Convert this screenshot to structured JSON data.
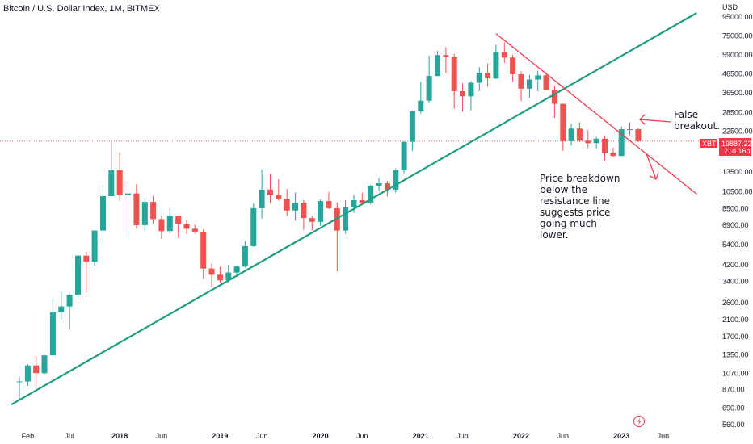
{
  "chart_title": "Bitcoin / U.S. Dollar Index, 1M, BITMEX",
  "currency_label": "USD",
  "colors": {
    "up": "#26a69a",
    "down": "#ef5350",
    "support": "#1f9d7e",
    "resistance": "#ef3950",
    "price_line": "#ef5350",
    "badge": "#f23645",
    "badge_dark": "#e0404f",
    "text": "#131722"
  },
  "price_badge": {
    "symbol": "XBT",
    "price": "19887.22",
    "countdown": "21d 16h"
  },
  "lightning_icon": "lightning-icon",
  "annotations": {
    "false_breakout": [
      "False",
      "breakout."
    ],
    "breakdown_note": [
      "Price breakdown",
      "below the",
      "resistance line",
      "suggests price",
      "going much",
      "lower."
    ]
  },
  "chart_data": {
    "type": "candlestick",
    "title": "Bitcoin / U.S. Dollar Index, 1M, BITMEX",
    "y_scale": "log",
    "ylim": [
      540,
      110000
    ],
    "y_ticks": [
      95000,
      75000,
      59000,
      46500,
      36500,
      28500,
      22500,
      13500,
      10500,
      8500,
      6900,
      5400,
      4200,
      3400,
      2600,
      2100,
      1700,
      1350,
      1070,
      870,
      690,
      560
    ],
    "y_tick_labels": [
      "95000.00",
      "75000.00",
      "59000.00",
      "46500.00",
      "36500.00",
      "28500.00",
      "22500.00",
      "13500.00",
      "10500.00",
      "8500.00",
      "6900.00",
      "5400.00",
      "4200.00",
      "3400.00",
      "2600.00",
      "2100.00",
      "1700.00",
      "1350.00",
      "1070.00",
      "870.00",
      "690.00",
      "560.00"
    ],
    "x_ticks": [
      {
        "label": "Feb",
        "date": "2017-02",
        "year": false
      },
      {
        "label": "Jul",
        "date": "2017-07",
        "year": false
      },
      {
        "label": "2018",
        "date": "2018-01",
        "year": true
      },
      {
        "label": "Jun",
        "date": "2018-06",
        "year": false
      },
      {
        "label": "2019",
        "date": "2019-01",
        "year": true
      },
      {
        "label": "Jun",
        "date": "2019-06",
        "year": false
      },
      {
        "label": "2020",
        "date": "2020-01",
        "year": true
      },
      {
        "label": "Jun",
        "date": "2020-06",
        "year": false
      },
      {
        "label": "2021",
        "date": "2021-01",
        "year": true
      },
      {
        "label": "Jun",
        "date": "2021-06",
        "year": false
      },
      {
        "label": "2022",
        "date": "2022-01",
        "year": true
      },
      {
        "label": "Jun",
        "date": "2022-06",
        "year": false
      },
      {
        "label": "2023",
        "date": "2023-01",
        "year": true
      },
      {
        "label": "Jun",
        "date": "2023-06",
        "year": false
      }
    ],
    "candles": [
      {
        "date": "2017-01",
        "o": 960,
        "h": 1020,
        "l": 760,
        "c": 965
      },
      {
        "date": "2017-02",
        "o": 965,
        "h": 1200,
        "l": 910,
        "c": 1180
      },
      {
        "date": "2017-03",
        "o": 1180,
        "h": 1330,
        "l": 890,
        "c": 1070
      },
      {
        "date": "2017-04",
        "o": 1070,
        "h": 1350,
        "l": 1060,
        "c": 1340
      },
      {
        "date": "2017-05",
        "o": 1340,
        "h": 2700,
        "l": 1320,
        "c": 2300
      },
      {
        "date": "2017-06",
        "o": 2300,
        "h": 3000,
        "l": 2100,
        "c": 2480
      },
      {
        "date": "2017-07",
        "o": 2480,
        "h": 2900,
        "l": 1850,
        "c": 2870
      },
      {
        "date": "2017-08",
        "o": 2870,
        "h": 4700,
        "l": 2700,
        "c": 4700
      },
      {
        "date": "2017-09",
        "o": 4700,
        "h": 4950,
        "l": 2950,
        "c": 4350
      },
      {
        "date": "2017-10",
        "o": 4350,
        "h": 6450,
        "l": 4150,
        "c": 6450
      },
      {
        "date": "2017-11",
        "o": 6450,
        "h": 11300,
        "l": 5500,
        "c": 9950
      },
      {
        "date": "2017-12",
        "o": 9950,
        "h": 19700,
        "l": 9900,
        "c": 13800
      },
      {
        "date": "2018-01",
        "o": 13800,
        "h": 17200,
        "l": 9400,
        "c": 10100
      },
      {
        "date": "2018-02",
        "o": 10100,
        "h": 11800,
        "l": 6000,
        "c": 10300
      },
      {
        "date": "2018-03",
        "o": 10300,
        "h": 11600,
        "l": 6600,
        "c": 6900
      },
      {
        "date": "2018-04",
        "o": 6900,
        "h": 9750,
        "l": 6450,
        "c": 9250
      },
      {
        "date": "2018-05",
        "o": 9250,
        "h": 10000,
        "l": 7000,
        "c": 7450
      },
      {
        "date": "2018-06",
        "o": 7450,
        "h": 7750,
        "l": 5800,
        "c": 6400
      },
      {
        "date": "2018-07",
        "o": 6400,
        "h": 8500,
        "l": 6250,
        "c": 7750
      },
      {
        "date": "2018-08",
        "o": 7750,
        "h": 7800,
        "l": 5900,
        "c": 7000
      },
      {
        "date": "2018-09",
        "o": 7000,
        "h": 7400,
        "l": 6150,
        "c": 6600
      },
      {
        "date": "2018-10",
        "o": 6600,
        "h": 6950,
        "l": 6200,
        "c": 6300
      },
      {
        "date": "2018-11",
        "o": 6300,
        "h": 6550,
        "l": 3500,
        "c": 4000
      },
      {
        "date": "2018-12",
        "o": 4000,
        "h": 4250,
        "l": 3150,
        "c": 3700
      },
      {
        "date": "2019-01",
        "o": 3700,
        "h": 4100,
        "l": 3350,
        "c": 3450
      },
      {
        "date": "2019-02",
        "o": 3450,
        "h": 4200,
        "l": 3350,
        "c": 3800
      },
      {
        "date": "2019-03",
        "o": 3800,
        "h": 4150,
        "l": 3700,
        "c": 4100
      },
      {
        "date": "2019-04",
        "o": 4100,
        "h": 5650,
        "l": 4050,
        "c": 5300
      },
      {
        "date": "2019-05",
        "o": 5300,
        "h": 9100,
        "l": 5250,
        "c": 8550
      },
      {
        "date": "2019-06",
        "o": 8550,
        "h": 13900,
        "l": 7500,
        "c": 10800
      },
      {
        "date": "2019-07",
        "o": 10800,
        "h": 13200,
        "l": 9150,
        "c": 10100
      },
      {
        "date": "2019-08",
        "o": 10100,
        "h": 12300,
        "l": 9400,
        "c": 9600
      },
      {
        "date": "2019-09",
        "o": 9600,
        "h": 10900,
        "l": 7750,
        "c": 8300
      },
      {
        "date": "2019-10",
        "o": 8300,
        "h": 10400,
        "l": 7300,
        "c": 9150
      },
      {
        "date": "2019-11",
        "o": 9150,
        "h": 9500,
        "l": 6500,
        "c": 7550
      },
      {
        "date": "2019-12",
        "o": 7550,
        "h": 7750,
        "l": 6450,
        "c": 7200
      },
      {
        "date": "2020-01",
        "o": 7200,
        "h": 9550,
        "l": 6850,
        "c": 9350
      },
      {
        "date": "2020-02",
        "o": 9350,
        "h": 10500,
        "l": 8450,
        "c": 8550
      },
      {
        "date": "2020-03",
        "o": 8550,
        "h": 9200,
        "l": 3850,
        "c": 6450
      },
      {
        "date": "2020-04",
        "o": 6450,
        "h": 9450,
        "l": 6200,
        "c": 8650
      },
      {
        "date": "2020-05",
        "o": 8650,
        "h": 10100,
        "l": 8050,
        "c": 9450
      },
      {
        "date": "2020-06",
        "o": 9450,
        "h": 10400,
        "l": 8950,
        "c": 9150
      },
      {
        "date": "2020-07",
        "o": 9150,
        "h": 11450,
        "l": 8950,
        "c": 11350
      },
      {
        "date": "2020-08",
        "o": 11350,
        "h": 12500,
        "l": 10550,
        "c": 11700
      },
      {
        "date": "2020-09",
        "o": 11700,
        "h": 12100,
        "l": 9900,
        "c": 10800
      },
      {
        "date": "2020-10",
        "o": 10800,
        "h": 14100,
        "l": 10400,
        "c": 13800
      },
      {
        "date": "2020-11",
        "o": 13800,
        "h": 19900,
        "l": 13250,
        "c": 19700
      },
      {
        "date": "2020-12",
        "o": 19700,
        "h": 29300,
        "l": 17600,
        "c": 29000
      },
      {
        "date": "2021-01",
        "o": 29000,
        "h": 42000,
        "l": 28100,
        "c": 33100
      },
      {
        "date": "2021-02",
        "o": 33100,
        "h": 58300,
        "l": 32300,
        "c": 45200
      },
      {
        "date": "2021-03",
        "o": 45200,
        "h": 61800,
        "l": 45000,
        "c": 58800
      },
      {
        "date": "2021-04",
        "o": 58800,
        "h": 64900,
        "l": 47000,
        "c": 57700
      },
      {
        "date": "2021-05",
        "o": 57700,
        "h": 59500,
        "l": 30000,
        "c": 37300
      },
      {
        "date": "2021-06",
        "o": 37300,
        "h": 41300,
        "l": 28800,
        "c": 35000
      },
      {
        "date": "2021-07",
        "o": 35000,
        "h": 42400,
        "l": 29300,
        "c": 41500
      },
      {
        "date": "2021-08",
        "o": 41500,
        "h": 50500,
        "l": 37300,
        "c": 47100
      },
      {
        "date": "2021-09",
        "o": 47100,
        "h": 52900,
        "l": 39600,
        "c": 43800
      },
      {
        "date": "2021-10",
        "o": 43800,
        "h": 67000,
        "l": 43300,
        "c": 61300
      },
      {
        "date": "2021-11",
        "o": 61300,
        "h": 69000,
        "l": 53300,
        "c": 57000
      },
      {
        "date": "2021-12",
        "o": 57000,
        "h": 59100,
        "l": 42000,
        "c": 46200
      },
      {
        "date": "2022-01",
        "o": 46200,
        "h": 47900,
        "l": 32900,
        "c": 38500
      },
      {
        "date": "2022-02",
        "o": 38500,
        "h": 45800,
        "l": 34300,
        "c": 43200
      },
      {
        "date": "2022-03",
        "o": 43200,
        "h": 48200,
        "l": 37200,
        "c": 45500
      },
      {
        "date": "2022-04",
        "o": 45500,
        "h": 47400,
        "l": 37700,
        "c": 37700
      },
      {
        "date": "2022-05",
        "o": 37700,
        "h": 40000,
        "l": 26700,
        "c": 31800
      },
      {
        "date": "2022-06",
        "o": 31800,
        "h": 31900,
        "l": 17600,
        "c": 19900
      },
      {
        "date": "2022-07",
        "o": 19900,
        "h": 24600,
        "l": 18800,
        "c": 23300
      },
      {
        "date": "2022-08",
        "o": 23300,
        "h": 25200,
        "l": 19600,
        "c": 20000
      },
      {
        "date": "2022-09",
        "o": 20000,
        "h": 22800,
        "l": 18200,
        "c": 19400
      },
      {
        "date": "2022-10",
        "o": 19400,
        "h": 21000,
        "l": 18200,
        "c": 20500
      },
      {
        "date": "2022-11",
        "o": 20500,
        "h": 21400,
        "l": 15500,
        "c": 17200
      },
      {
        "date": "2022-12",
        "o": 17200,
        "h": 18300,
        "l": 16300,
        "c": 16500
      },
      {
        "date": "2023-01",
        "o": 16500,
        "h": 23900,
        "l": 16500,
        "c": 23100
      },
      {
        "date": "2023-02",
        "o": 23100,
        "h": 25300,
        "l": 21400,
        "c": 23100
      },
      {
        "date": "2023-03",
        "o": 23100,
        "h": 23500,
        "l": 19600,
        "c": 19887.22
      }
    ],
    "trendlines": [
      {
        "name": "support",
        "from": {
          "date": "2016-12",
          "value": 720
        },
        "to": {
          "date": "2023-10",
          "value": 100000
        }
      },
      {
        "name": "resistance",
        "from": {
          "date": "2021-10",
          "value": 77000
        },
        "to": {
          "date": "2023-10",
          "value": 10200
        }
      }
    ],
    "last_price": 19887.22
  }
}
